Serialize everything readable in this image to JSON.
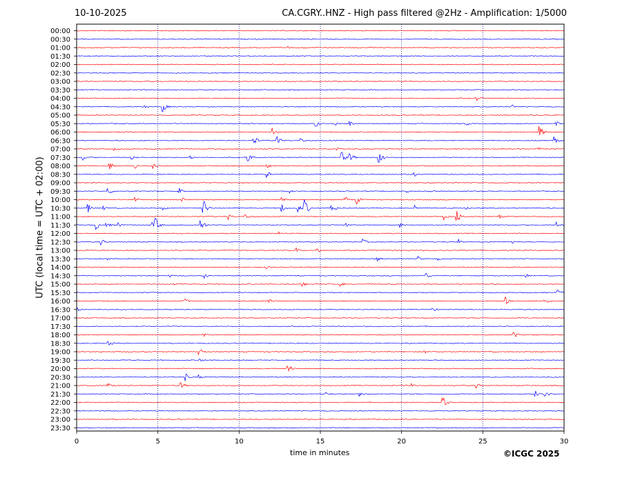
{
  "header": {
    "date": "10-10-2025",
    "title": "CA.CGRY..HNZ - High pass filtered @2Hz - Amplification: 1/5000"
  },
  "footer": {
    "copyright": "©ICGC 2025"
  },
  "chart_data": {
    "type": "line",
    "title": "CA.CGRY..HNZ - High pass filtered @2Hz - Amplification: 1/5000",
    "xlabel": "time in minutes",
    "ylabel": "UTC (local time = UTC + 02:00)",
    "xlim": [
      0,
      30
    ],
    "xticks": [
      0,
      5,
      10,
      15,
      20,
      25,
      30
    ],
    "grid": "vertical dotted at every 5 minutes",
    "trace_colors": [
      "#ff0000",
      "#0000ff"
    ],
    "row_labels": [
      "00:00",
      "00:30",
      "01:00",
      "01:30",
      "02:00",
      "02:30",
      "03:00",
      "03:30",
      "04:00",
      "04:30",
      "05:00",
      "05:30",
      "06:00",
      "06:30",
      "07:00",
      "07:30",
      "08:00",
      "08:30",
      "09:00",
      "09:30",
      "10:00",
      "10:30",
      "11:00",
      "11:30",
      "12:00",
      "12:30",
      "13:00",
      "13:30",
      "14:00",
      "14:30",
      "15:00",
      "15:30",
      "16:00",
      "16:30",
      "17:00",
      "17:30",
      "18:00",
      "18:30",
      "19:00",
      "19:30",
      "20:00",
      "20:30",
      "21:00",
      "21:30",
      "22:00",
      "22:30",
      "23:00",
      "23:30"
    ],
    "events": [
      {
        "row": 2,
        "t": 13.0,
        "amp": 2
      },
      {
        "row": 2,
        "t": 13.9,
        "amp": 2
      },
      {
        "row": 8,
        "t": 24.6,
        "amp": 5
      },
      {
        "row": 9,
        "t": 4.2,
        "amp": 3
      },
      {
        "row": 9,
        "t": 5.3,
        "amp": 8
      },
      {
        "row": 9,
        "t": 26.8,
        "amp": 3
      },
      {
        "row": 11,
        "t": 14.7,
        "amp": 6
      },
      {
        "row": 11,
        "t": 15.9,
        "amp": 4
      },
      {
        "row": 11,
        "t": 16.8,
        "amp": 5
      },
      {
        "row": 11,
        "t": 24.0,
        "amp": 3
      },
      {
        "row": 11,
        "t": 29.5,
        "amp": 4
      },
      {
        "row": 12,
        "t": 3.1,
        "amp": 3
      },
      {
        "row": 12,
        "t": 12.0,
        "amp": 9
      },
      {
        "row": 12,
        "t": 28.5,
        "amp": 9
      },
      {
        "row": 13,
        "t": 10.9,
        "amp": 8
      },
      {
        "row": 13,
        "t": 12.3,
        "amp": 9
      },
      {
        "row": 13,
        "t": 13.8,
        "amp": 4
      },
      {
        "row": 13,
        "t": 29.4,
        "amp": 6
      },
      {
        "row": 14,
        "t": 2.3,
        "amp": 3
      },
      {
        "row": 14,
        "t": 16.0,
        "amp": 3
      },
      {
        "row": 14,
        "t": 28.4,
        "amp": 3
      },
      {
        "row": 15,
        "t": 0.4,
        "amp": 5
      },
      {
        "row": 15,
        "t": 3.4,
        "amp": 4
      },
      {
        "row": 15,
        "t": 7.0,
        "amp": 3
      },
      {
        "row": 15,
        "t": 10.5,
        "amp": 10
      },
      {
        "row": 15,
        "t": 16.3,
        "amp": 9
      },
      {
        "row": 15,
        "t": 16.8,
        "amp": 9
      },
      {
        "row": 15,
        "t": 18.6,
        "amp": 10
      },
      {
        "row": 16,
        "t": 2.0,
        "amp": 7
      },
      {
        "row": 16,
        "t": 3.6,
        "amp": 5
      },
      {
        "row": 16,
        "t": 4.7,
        "amp": 5
      },
      {
        "row": 16,
        "t": 11.7,
        "amp": 4
      },
      {
        "row": 17,
        "t": 11.7,
        "amp": 6
      },
      {
        "row": 17,
        "t": 20.8,
        "amp": 3
      },
      {
        "row": 19,
        "t": 1.9,
        "amp": 8
      },
      {
        "row": 19,
        "t": 6.3,
        "amp": 5
      },
      {
        "row": 19,
        "t": 13.1,
        "amp": 3
      },
      {
        "row": 19,
        "t": 20.3,
        "amp": 3
      },
      {
        "row": 19,
        "t": 21.8,
        "amp": 3
      },
      {
        "row": 20,
        "t": 3.6,
        "amp": 4
      },
      {
        "row": 20,
        "t": 6.5,
        "amp": 3
      },
      {
        "row": 20,
        "t": 12.6,
        "amp": 5
      },
      {
        "row": 20,
        "t": 16.5,
        "amp": 6
      },
      {
        "row": 20,
        "t": 17.2,
        "amp": 8
      },
      {
        "row": 21,
        "t": 0.7,
        "amp": 7
      },
      {
        "row": 21,
        "t": 1.6,
        "amp": 4
      },
      {
        "row": 21,
        "t": 5.3,
        "amp": 4
      },
      {
        "row": 21,
        "t": 7.8,
        "amp": 14
      },
      {
        "row": 21,
        "t": 12.6,
        "amp": 7
      },
      {
        "row": 21,
        "t": 13.6,
        "amp": 7
      },
      {
        "row": 21,
        "t": 14.0,
        "amp": 16
      },
      {
        "row": 21,
        "t": 15.7,
        "amp": 8
      },
      {
        "row": 21,
        "t": 20.8,
        "amp": 6
      },
      {
        "row": 21,
        "t": 24.0,
        "amp": 3
      },
      {
        "row": 22,
        "t": 9.3,
        "amp": 6
      },
      {
        "row": 22,
        "t": 10.4,
        "amp": 5
      },
      {
        "row": 22,
        "t": 22.6,
        "amp": 6
      },
      {
        "row": 22,
        "t": 23.4,
        "amp": 10
      },
      {
        "row": 22,
        "t": 26.0,
        "amp": 4
      },
      {
        "row": 23,
        "t": 1.2,
        "amp": 7
      },
      {
        "row": 23,
        "t": 1.8,
        "amp": 6
      },
      {
        "row": 23,
        "t": 2.5,
        "amp": 6
      },
      {
        "row": 23,
        "t": 4.6,
        "amp": 5
      },
      {
        "row": 23,
        "t": 4.8,
        "amp": 14
      },
      {
        "row": 23,
        "t": 7.6,
        "amp": 14
      },
      {
        "row": 23,
        "t": 16.6,
        "amp": 3
      },
      {
        "row": 23,
        "t": 19.9,
        "amp": 4
      },
      {
        "row": 23,
        "t": 29.5,
        "amp": 5
      },
      {
        "row": 24,
        "t": 12.4,
        "amp": 3
      },
      {
        "row": 25,
        "t": 1.5,
        "amp": 5
      },
      {
        "row": 25,
        "t": 17.6,
        "amp": 5
      },
      {
        "row": 25,
        "t": 23.5,
        "amp": 4
      },
      {
        "row": 25,
        "t": 26.8,
        "amp": 3
      },
      {
        "row": 26,
        "t": 13.5,
        "amp": 4
      },
      {
        "row": 26,
        "t": 14.8,
        "amp": 5
      },
      {
        "row": 27,
        "t": 1.8,
        "amp": 3
      },
      {
        "row": 27,
        "t": 18.5,
        "amp": 4
      },
      {
        "row": 27,
        "t": 21.0,
        "amp": 4
      },
      {
        "row": 27,
        "t": 22.2,
        "amp": 3
      },
      {
        "row": 28,
        "t": 11.7,
        "amp": 3
      },
      {
        "row": 29,
        "t": 5.7,
        "amp": 3
      },
      {
        "row": 29,
        "t": 7.9,
        "amp": 4
      },
      {
        "row": 29,
        "t": 21.5,
        "amp": 5
      },
      {
        "row": 29,
        "t": 27.6,
        "amp": 4
      },
      {
        "row": 30,
        "t": 6.0,
        "amp": 3
      },
      {
        "row": 30,
        "t": 13.9,
        "amp": 4
      },
      {
        "row": 30,
        "t": 16.2,
        "amp": 4
      },
      {
        "row": 31,
        "t": 29.6,
        "amp": 5
      },
      {
        "row": 32,
        "t": 6.6,
        "amp": 6
      },
      {
        "row": 32,
        "t": 11.8,
        "amp": 5
      },
      {
        "row": 32,
        "t": 26.4,
        "amp": 7
      },
      {
        "row": 32,
        "t": 28.8,
        "amp": 5
      },
      {
        "row": 33,
        "t": 0.0,
        "amp": 4
      },
      {
        "row": 33,
        "t": 21.9,
        "amp": 5
      },
      {
        "row": 36,
        "t": 7.8,
        "amp": 3
      },
      {
        "row": 36,
        "t": 26.9,
        "amp": 6
      },
      {
        "row": 37,
        "t": 1.9,
        "amp": 8
      },
      {
        "row": 38,
        "t": 7.5,
        "amp": 9
      },
      {
        "row": 38,
        "t": 21.4,
        "amp": 3
      },
      {
        "row": 39,
        "t": 7.5,
        "amp": 6
      },
      {
        "row": 40,
        "t": 13.0,
        "amp": 9
      },
      {
        "row": 41,
        "t": 6.7,
        "amp": 6
      },
      {
        "row": 41,
        "t": 7.5,
        "amp": 4
      },
      {
        "row": 42,
        "t": 1.9,
        "amp": 5
      },
      {
        "row": 42,
        "t": 6.4,
        "amp": 7
      },
      {
        "row": 42,
        "t": 20.6,
        "amp": 3
      },
      {
        "row": 42,
        "t": 24.6,
        "amp": 4
      },
      {
        "row": 43,
        "t": 15.3,
        "amp": 4
      },
      {
        "row": 43,
        "t": 17.4,
        "amp": 5
      },
      {
        "row": 43,
        "t": 28.2,
        "amp": 9
      },
      {
        "row": 43,
        "t": 28.8,
        "amp": 7
      },
      {
        "row": 44,
        "t": 22.5,
        "amp": 10
      }
    ]
  }
}
